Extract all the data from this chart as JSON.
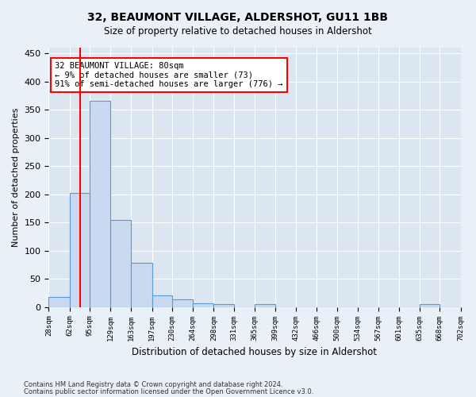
{
  "title1": "32, BEAUMONT VILLAGE, ALDERSHOT, GU11 1BB",
  "title2": "Size of property relative to detached houses in Aldershot",
  "xlabel": "Distribution of detached houses by size in Aldershot",
  "ylabel": "Number of detached properties",
  "footer1": "Contains HM Land Registry data © Crown copyright and database right 2024.",
  "footer2": "Contains public sector information licensed under the Open Government Licence v3.0.",
  "bin_labels": [
    "28sqm",
    "62sqm",
    "95sqm",
    "129sqm",
    "163sqm",
    "197sqm",
    "230sqm",
    "264sqm",
    "298sqm",
    "331sqm",
    "365sqm",
    "399sqm",
    "432sqm",
    "466sqm",
    "500sqm",
    "534sqm",
    "567sqm",
    "601sqm",
    "635sqm",
    "668sqm",
    "702sqm"
  ],
  "bar_heights": [
    18,
    202,
    365,
    155,
    78,
    21,
    14,
    7,
    5,
    0,
    5,
    0,
    0,
    0,
    0,
    0,
    0,
    0,
    5,
    0
  ],
  "bar_color": "#c9d9f0",
  "bar_edgecolor": "#5b9bd5",
  "vline_x": 80,
  "vline_color": "red",
  "annotation_text": "32 BEAUMONT VILLAGE: 80sqm\n← 9% of detached houses are smaller (73)\n91% of semi-detached houses are larger (776) →",
  "annotation_box_color": "white",
  "annotation_box_edgecolor": "red",
  "ylim": [
    0,
    460
  ],
  "yticks": [
    0,
    50,
    100,
    150,
    200,
    250,
    300,
    350,
    400,
    450
  ],
  "background_color": "#eaf0f8",
  "plot_background": "#dce6f1",
  "grid_color": "white"
}
